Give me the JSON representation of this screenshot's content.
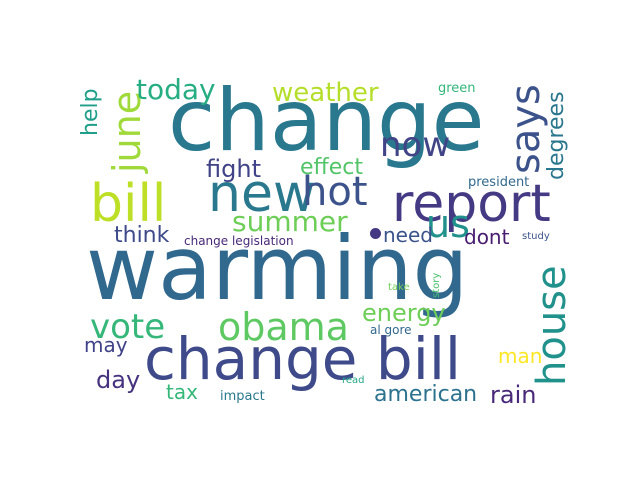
{
  "words": [
    {
      "text": "warming",
      "color": "#31688e"
    },
    {
      "text": "change",
      "color": "#2a788e"
    },
    {
      "text": "change bill",
      "color": "#3e4a89"
    },
    {
      "text": "report",
      "color": "#443983"
    },
    {
      "text": "bill",
      "color": "#bddf26"
    },
    {
      "text": "new",
      "color": "#2a788e"
    },
    {
      "text": "hot",
      "color": "#3b528b"
    },
    {
      "text": "obama",
      "color": "#5ec962"
    },
    {
      "text": "house",
      "color": "#21918c"
    },
    {
      "text": "says",
      "color": "#3b528b"
    },
    {
      "text": "june",
      "color": "#9fda3a"
    },
    {
      "text": "now",
      "color": "#414487"
    },
    {
      "text": "us",
      "color": "#21918c"
    },
    {
      "text": "vote",
      "color": "#35b779"
    },
    {
      "text": "summer",
      "color": "#6ece58"
    },
    {
      "text": "weather",
      "color": "#b5de2b"
    },
    {
      "text": "today",
      "color": "#26ad81"
    },
    {
      "text": "energy",
      "color": "#6ece58"
    },
    {
      "text": "fight",
      "color": "#404387"
    },
    {
      "text": "effect",
      "color": "#52c569"
    },
    {
      "text": "think",
      "color": "#3e4a89"
    },
    {
      "text": "need",
      "color": "#3b528b"
    },
    {
      "text": "dont",
      "color": "#481c6e"
    },
    {
      "text": "degrees",
      "color": "#2a768e"
    },
    {
      "text": "help",
      "color": "#1f9e89"
    },
    {
      "text": "american",
      "color": "#2c728e"
    },
    {
      "text": "rain",
      "color": "#482878"
    },
    {
      "text": "day",
      "color": "#46327e"
    },
    {
      "text": "may",
      "color": "#404387"
    },
    {
      "text": "man",
      "color": "#fde725"
    },
    {
      "text": "tax",
      "color": "#35b779"
    },
    {
      "text": "green",
      "color": "#32b67a"
    },
    {
      "text": "president",
      "color": "#31688e"
    },
    {
      "text": "change legislation",
      "color": "#482878"
    },
    {
      "text": "study",
      "color": "#3b528b"
    },
    {
      "text": "impact",
      "color": "#2a788e"
    },
    {
      "text": "read",
      "color": "#22a785"
    },
    {
      "text": "al gore",
      "color": "#31688e"
    },
    {
      "text": "take",
      "color": "#73d056"
    },
    {
      "text": "story",
      "color": "#4ac16d"
    }
  ]
}
